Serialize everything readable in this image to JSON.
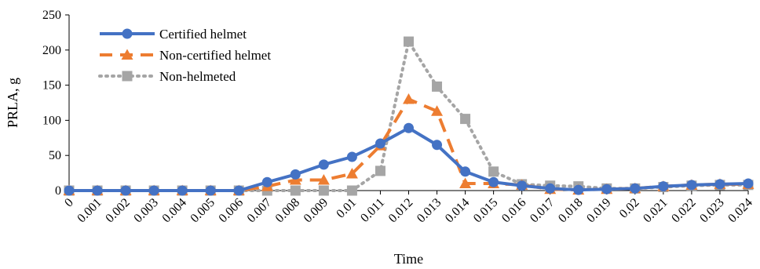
{
  "chart_data": {
    "type": "line",
    "xlabel": "Time",
    "ylabel": "PRLA, g",
    "ylim": [
      0,
      250
    ],
    "yticks": [
      0,
      50,
      100,
      150,
      200,
      250
    ],
    "grid": false,
    "legend_position": "top-left",
    "categories": [
      "0",
      "0.001",
      "0.002",
      "0.003",
      "0.004",
      "0.005",
      "0.006",
      "0.007",
      "0.008",
      "0.009",
      "0.01",
      "0.011",
      "0.012",
      "0.013",
      "0.014",
      "0.015",
      "0.016",
      "0.017",
      "0.018",
      "0.019",
      "0.02",
      "0.021",
      "0.022",
      "0.023",
      "0.024"
    ],
    "series": [
      {
        "name": "Certified helmet",
        "color": "#4472C4",
        "marker": "circle",
        "line_style": "solid",
        "values": [
          0,
          0,
          0,
          0,
          0,
          0,
          0,
          12,
          23,
          37,
          48,
          67,
          89,
          65,
          27,
          12,
          7,
          3,
          1,
          2,
          3,
          6,
          8,
          9,
          10
        ]
      },
      {
        "name": "Non-certified helmet",
        "color": "#ED7D31",
        "marker": "triangle",
        "line_style": "dashed",
        "values": [
          0,
          0,
          0,
          0,
          0,
          0,
          0,
          6,
          15,
          15,
          24,
          64,
          130,
          113,
          10,
          10,
          8,
          2,
          1,
          2,
          3,
          6,
          8,
          9,
          9
        ]
      },
      {
        "name": "Non-helmeted",
        "color": "#A5A5A5",
        "marker": "square",
        "line_style": "dotted",
        "values": [
          0,
          0,
          0,
          0,
          0,
          0,
          0,
          0,
          0,
          0,
          0,
          28,
          212,
          148,
          102,
          27,
          9,
          7,
          6,
          3,
          3,
          5,
          7,
          8,
          8
        ]
      }
    ]
  }
}
